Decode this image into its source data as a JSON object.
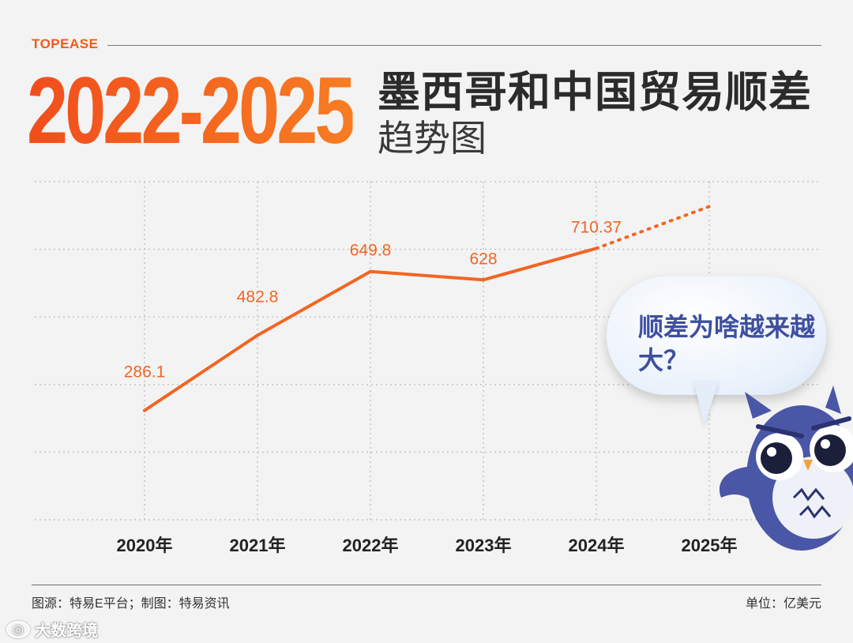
{
  "header": {
    "brand": "TOPEASE",
    "big_years": "2022-2025",
    "title_line1": "墨西哥和中国贸易顺差",
    "title_line2": "趋势图"
  },
  "callout": {
    "text": "顺差为啥越来越大？",
    "mascot": "owl-mascot-icon"
  },
  "footer": {
    "source": "图源：特易E平台；制图：特易资讯",
    "unit": "单位：亿美元"
  },
  "watermark": {
    "logo": "logo-icon",
    "text": "大数跨境"
  },
  "colors": {
    "accent": "#f05a1a",
    "line": "#f26522",
    "grid": "#c4c4c4",
    "bubble_text": "#3e4fa0",
    "owl": "#4a56a6"
  },
  "chart_data": {
    "type": "line",
    "categories": [
      "2020年",
      "2021年",
      "2022年",
      "2023年",
      "2024年",
      "2025年"
    ],
    "series": [
      {
        "values": [
          286.1,
          482.8,
          649.8,
          628,
          710.37,
          null
        ],
        "labels": [
          "286.1",
          "482.8",
          "649.8",
          "628",
          "710.37",
          ""
        ]
      }
    ],
    "forecast_segment": {
      "from_category": "2024年",
      "to_category": "2025年",
      "style": "dotted",
      "end_value": 820
    },
    "title": "墨西哥和中国贸易顺差趋势图",
    "xlabel": "",
    "ylabel": "",
    "ylim": [
      0,
      1000
    ],
    "grid": true,
    "legend": "none"
  }
}
